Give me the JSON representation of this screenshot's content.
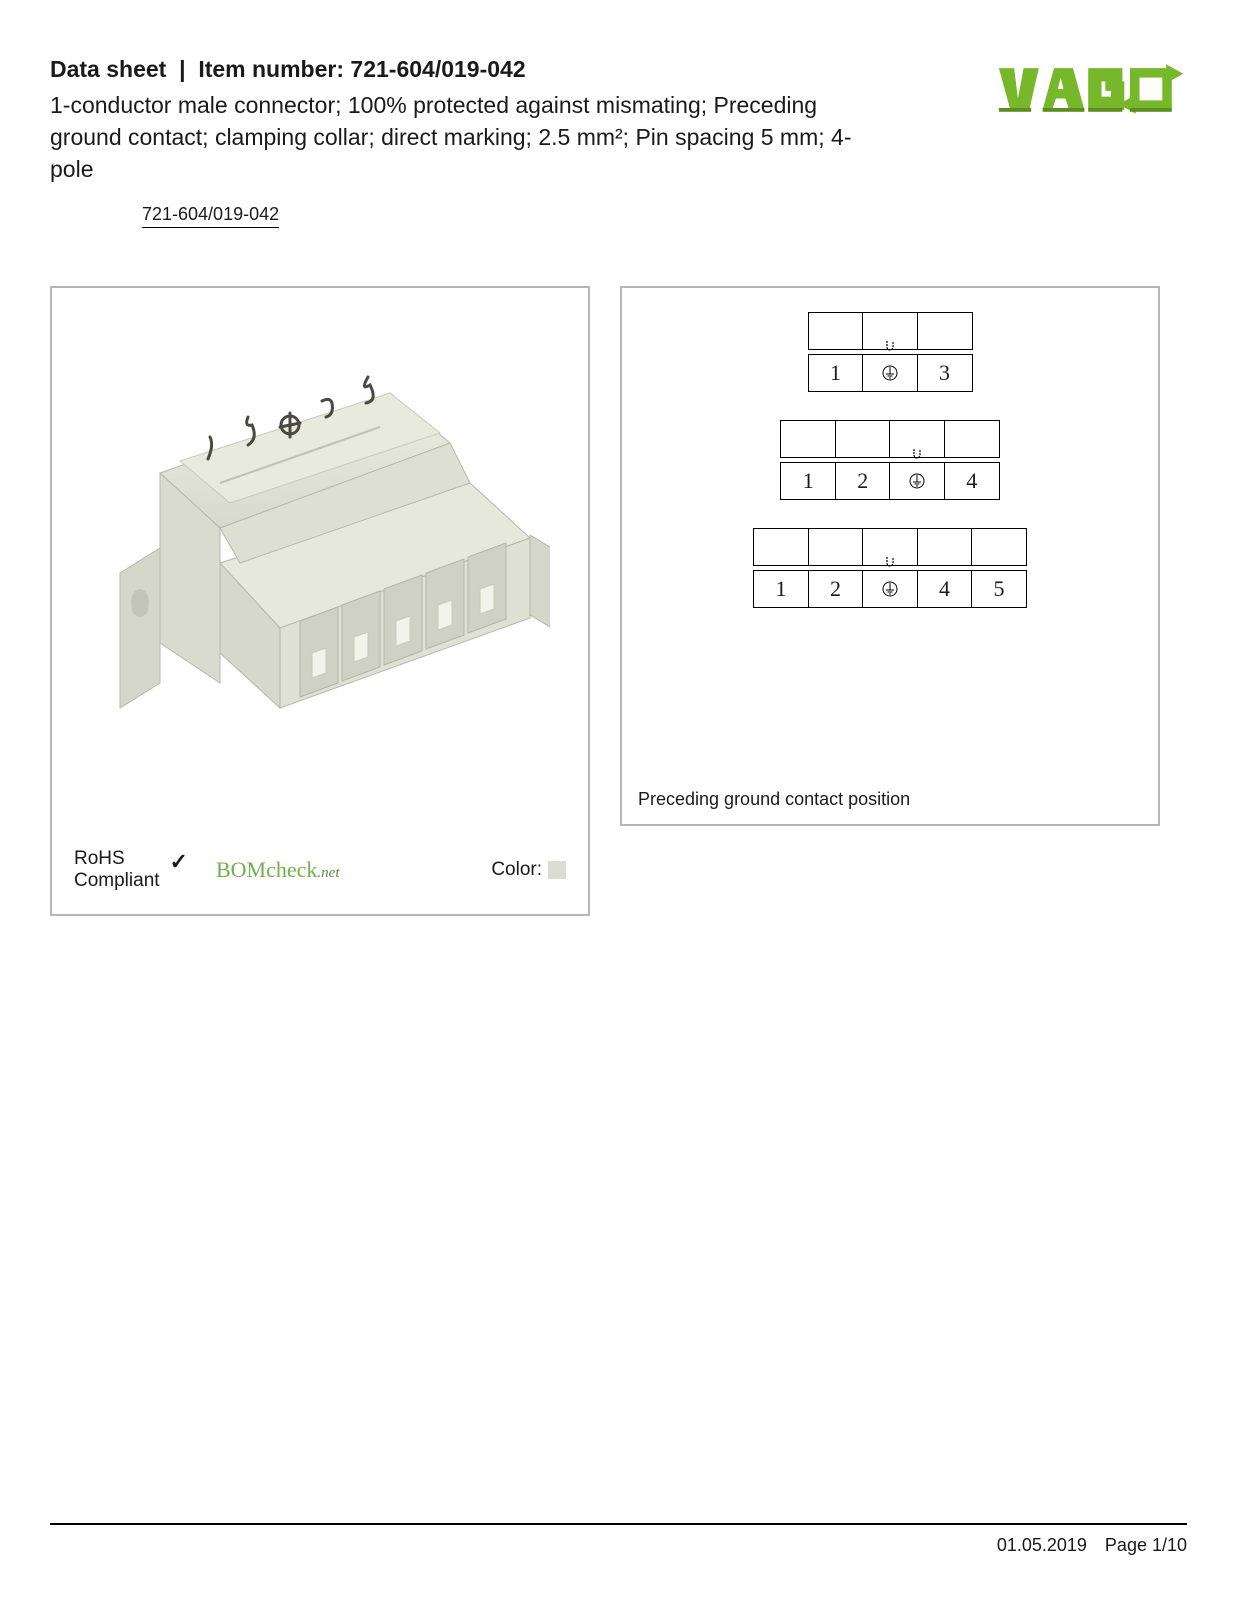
{
  "header": {
    "prefix": "Data sheet",
    "separator": "|",
    "item_label": "Item number:",
    "item_number": "721-604/019-042",
    "description": "1-conductor male connector; 100% protected against mismating; Preceding ground contact; clamping collar; direct marking; 2.5 mm²; Pin spacing 5 mm; 4-pole",
    "item_link": "721-604/019-042"
  },
  "logo": {
    "text": "WAGO",
    "fill": "#76b82a",
    "shadow": "#5a8f1f"
  },
  "product_image": {
    "body_color": "#e3e4d8",
    "shadow_color": "#b8b9ad",
    "highlight_color": "#f0f0e8",
    "marking_color": "#4a4a42"
  },
  "compliance": {
    "rohs_line1": "RoHS",
    "rohs_line2": "Compliant",
    "bomcheck_main": "BOMcheck",
    "bomcheck_suffix": ".net",
    "color_label": "Color:",
    "color_swatch": "#dcdcd2"
  },
  "diagram": {
    "caption": "Preceding ground contact position",
    "ground_symbol": "⏚",
    "groups": [
      {
        "top_cells": 3,
        "mark_index": 1,
        "labels": [
          "1",
          "⏚",
          "3"
        ]
      },
      {
        "top_cells": 4,
        "mark_index": 2,
        "labels": [
          "1",
          "2",
          "⏚",
          "4"
        ]
      },
      {
        "top_cells": 5,
        "mark_index": 2,
        "labels": [
          "1",
          "2",
          "⏚",
          "4",
          "5"
        ]
      }
    ]
  },
  "footer": {
    "date": "01.05.2019",
    "page": "Page 1/10"
  }
}
